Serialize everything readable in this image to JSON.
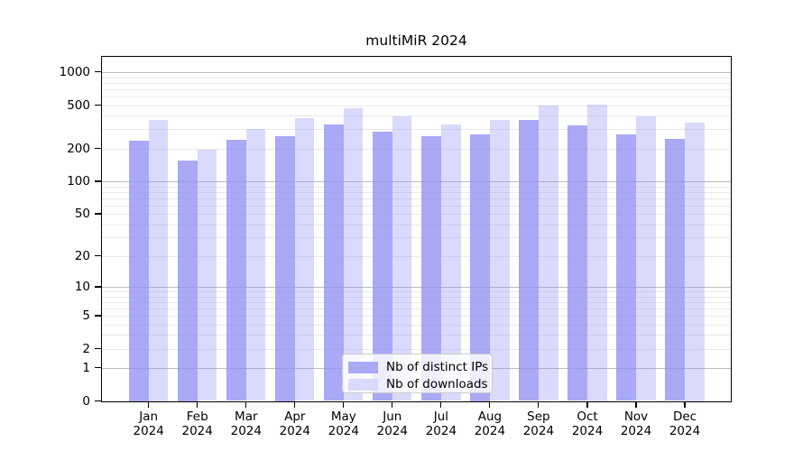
{
  "title": "multiMiR 2024",
  "chart_data": {
    "type": "bar",
    "title": "multiMiR 2024",
    "x_categories": [
      "Jan",
      "Feb",
      "Mar",
      "Apr",
      "May",
      "Jun",
      "Jul",
      "Aug",
      "Sep",
      "Oct",
      "Nov",
      "Dec"
    ],
    "x_year": "2024",
    "series": [
      {
        "name": "Nb of distinct IPs",
        "key": "distinct-ips",
        "color": "#a9a9f5",
        "fill": "rgba(145,145,243,0.78)",
        "values": [
          236,
          155,
          240,
          262,
          333,
          286,
          259,
          272,
          363,
          325,
          268,
          243
        ]
      },
      {
        "name": "Nb of downloads",
        "key": "downloads",
        "color": "#dadafa",
        "fill": "rgba(143,143,245,0.33)",
        "values": [
          365,
          194,
          303,
          380,
          470,
          392,
          334,
          367,
          497,
          509,
          391,
          348
        ]
      }
    ],
    "y_ticks": [
      0,
      1,
      2,
      5,
      10,
      20,
      50,
      100,
      200,
      500,
      1000
    ],
    "y_scale": "log1p",
    "ylim": [
      0,
      1380
    ],
    "grid": "on",
    "legend_position": "lower-center-inside"
  }
}
